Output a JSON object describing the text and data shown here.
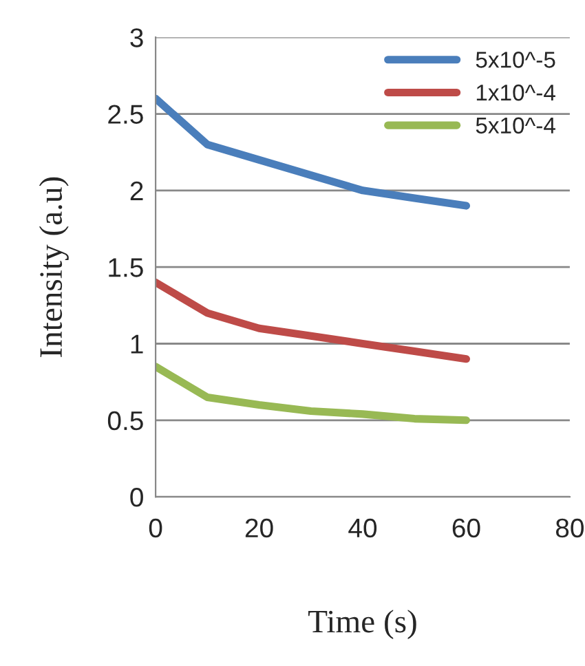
{
  "chart_data": {
    "type": "line",
    "xlabel": "Time (s)",
    "ylabel": "Intensity (a.u)",
    "x": [
      0,
      10,
      20,
      30,
      40,
      50,
      60
    ],
    "series": [
      {
        "name": "5x10^-5",
        "color": "#4a7ebb",
        "values": [
          2.6,
          2.3,
          2.2,
          2.1,
          2.0,
          1.95,
          1.9
        ]
      },
      {
        "name": "1x10^-4",
        "color": "#be4b48",
        "values": [
          1.4,
          1.2,
          1.1,
          1.05,
          1.0,
          0.95,
          0.9
        ]
      },
      {
        "name": "5x10^-4",
        "color": "#98b954",
        "values": [
          0.85,
          0.65,
          0.6,
          0.56,
          0.54,
          0.51,
          0.5
        ]
      }
    ],
    "xlim": [
      0,
      80
    ],
    "ylim": [
      0,
      3
    ],
    "xticks": [
      0,
      20,
      40,
      60,
      80
    ],
    "yticks": [
      0,
      0.5,
      1,
      1.5,
      2,
      2.5,
      3
    ],
    "grid": "y",
    "legend": "top right",
    "marker": "none",
    "line_style": "solid"
  }
}
